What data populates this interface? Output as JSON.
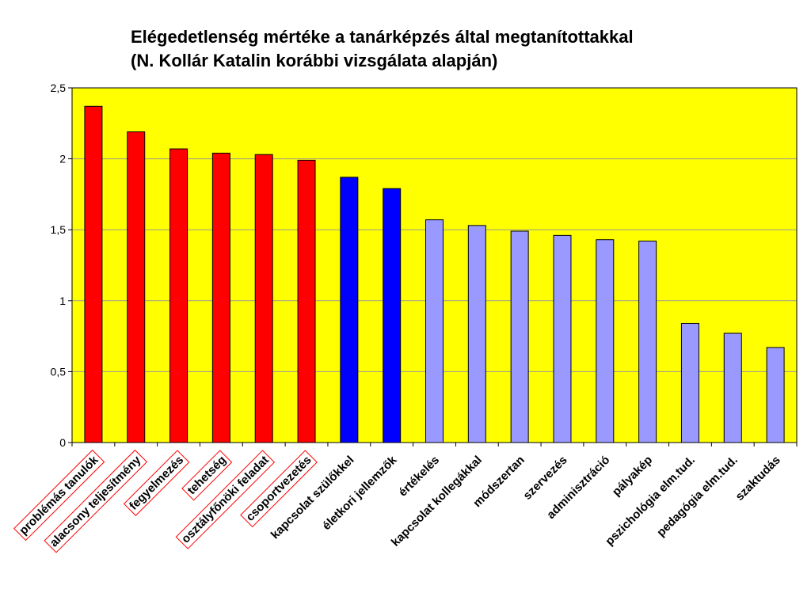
{
  "title_line1": "Elégedetlenség mértéke a tanárképzés által megtanítottakkal",
  "title_line2": "(N. Kollár Katalin korábbi vizsgálata alapján)",
  "colors": {
    "plot_bg": "#ffff00",
    "red": "#ff0000",
    "blue": "#0000ff",
    "lavender": "#9999ff",
    "box_border": "#ff0000",
    "grid": "#999999"
  },
  "chart_data": {
    "type": "bar",
    "ylim": [
      0,
      2.5
    ],
    "yticks": [
      "0",
      "0,5",
      "1",
      "1,5",
      "2",
      "2,5"
    ],
    "grid": true,
    "categories": [
      "problémás tanulók",
      "alacsony teljesítmény",
      "fegyelmezés",
      "tehetség",
      "osztályfőnöki feladat",
      "csoportvezetés",
      "kapcsolat szülőkkel",
      "életkori jellemzők",
      "értékelés",
      "kapcsolat kollegákkal",
      "módszertan",
      "szervezés",
      "adminisztráció",
      "pályakép",
      "pszichológia elm.tud.",
      "pedagógia elm.tud.",
      "szaktudás"
    ],
    "values": [
      2.37,
      2.19,
      2.07,
      2.04,
      2.03,
      1.99,
      1.87,
      1.79,
      1.57,
      1.53,
      1.49,
      1.46,
      1.43,
      1.42,
      0.84,
      0.77,
      0.67
    ],
    "bar_colors": [
      "red",
      "red",
      "red",
      "red",
      "red",
      "red",
      "blue",
      "blue",
      "lavender",
      "lavender",
      "lavender",
      "lavender",
      "lavender",
      "lavender",
      "lavender",
      "lavender",
      "lavender"
    ],
    "boxed_labels": [
      true,
      true,
      true,
      true,
      true,
      true,
      false,
      false,
      false,
      false,
      false,
      false,
      false,
      false,
      false,
      false,
      false
    ]
  }
}
